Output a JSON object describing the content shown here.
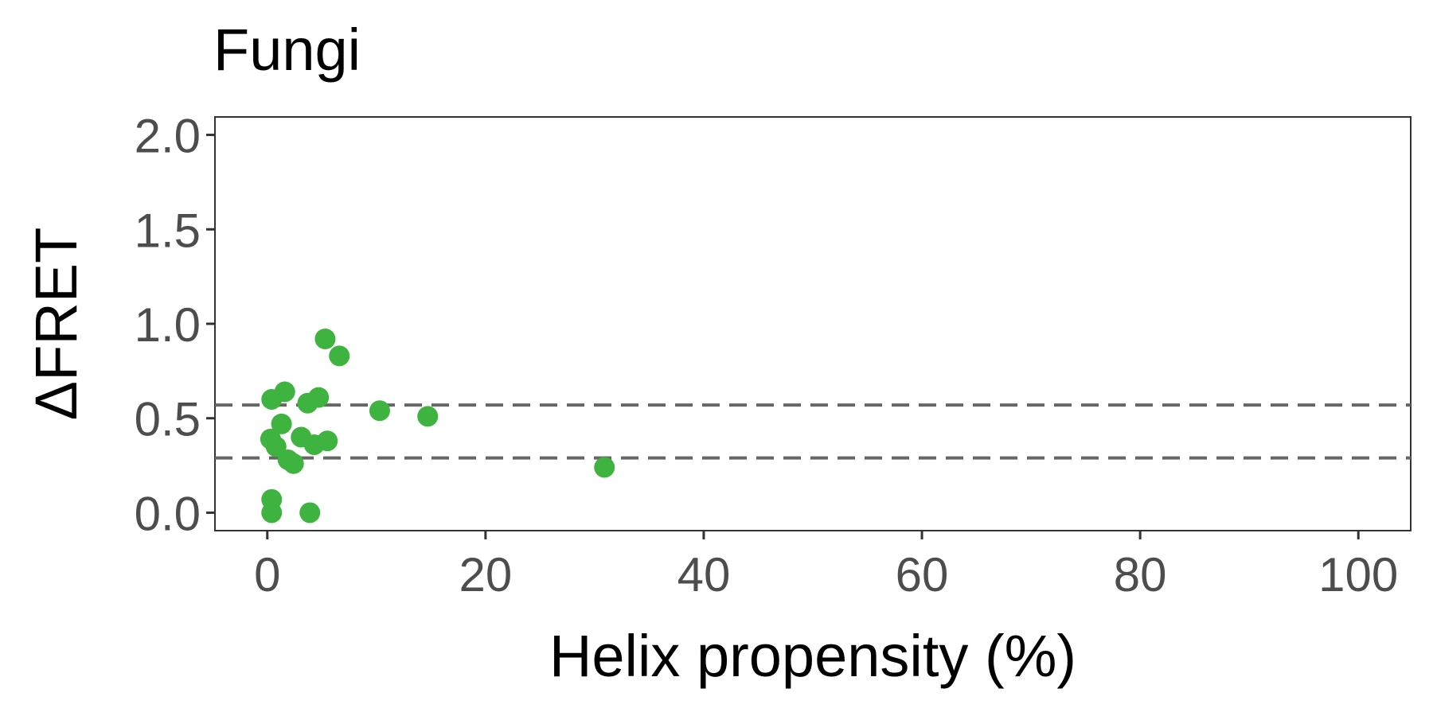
{
  "chart_data": {
    "type": "scatter",
    "title": "Fungi",
    "xlabel": "Helix propensity (%)",
    "ylabel": "ΔFRET",
    "xlim": [
      -4.8,
      104.8
    ],
    "ylim": [
      -0.095,
      2.095
    ],
    "xticks": [
      0,
      20,
      40,
      60,
      80,
      100
    ],
    "yticks": [
      0.0,
      0.5,
      1.0,
      1.5,
      2.0
    ],
    "xtick_labels": [
      "0",
      "20",
      "40",
      "60",
      "80",
      "100"
    ],
    "ytick_labels": [
      "0.0",
      "0.5",
      "1.0",
      "1.5",
      "2.0"
    ],
    "grid": false,
    "point_color": "#3fb33f",
    "reference_line_color": "#666666",
    "reference_lines_y": [
      0.57,
      0.29
    ],
    "points": [
      {
        "x": 5.3,
        "y": 0.92
      },
      {
        "x": 6.6,
        "y": 0.83
      },
      {
        "x": 1.6,
        "y": 0.64
      },
      {
        "x": 0.4,
        "y": 0.6
      },
      {
        "x": 4.7,
        "y": 0.61
      },
      {
        "x": 3.7,
        "y": 0.58
      },
      {
        "x": 10.3,
        "y": 0.54
      },
      {
        "x": 14.7,
        "y": 0.51
      },
      {
        "x": 1.3,
        "y": 0.47
      },
      {
        "x": 0.3,
        "y": 0.39
      },
      {
        "x": 3.1,
        "y": 0.4
      },
      {
        "x": 5.5,
        "y": 0.38
      },
      {
        "x": 0.8,
        "y": 0.35
      },
      {
        "x": 4.3,
        "y": 0.36
      },
      {
        "x": 1.9,
        "y": 0.28
      },
      {
        "x": 2.4,
        "y": 0.26
      },
      {
        "x": 30.9,
        "y": 0.24
      },
      {
        "x": 0.4,
        "y": 0.07
      },
      {
        "x": 0.4,
        "y": 0.0
      },
      {
        "x": 3.9,
        "y": 0.0
      }
    ]
  }
}
